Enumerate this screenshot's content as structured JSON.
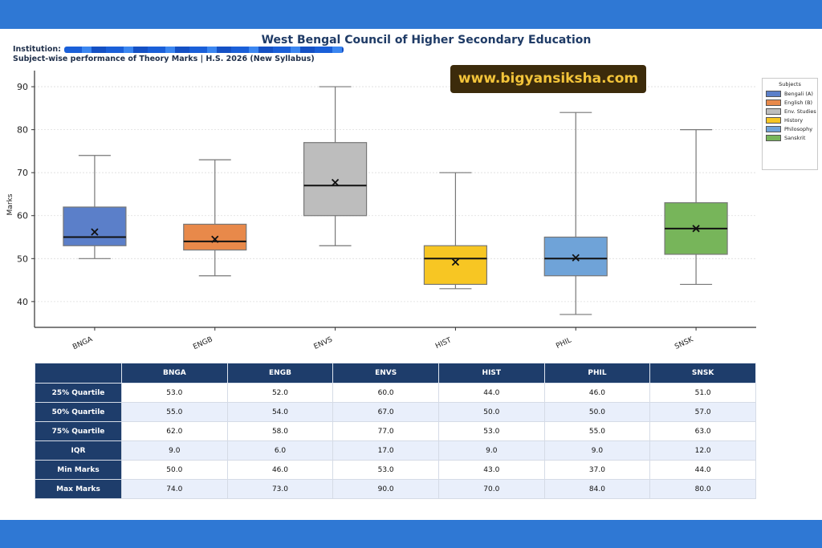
{
  "page": {
    "title": "West Bengal Council of Higher Secondary Education",
    "institution_label": "Institution:",
    "subtitle": "Subject-wise performance of Theory Marks  |  H.S. 2026 (New Syllabus)",
    "watermark": "www.bigyansiksha.com"
  },
  "legend": {
    "title": "Subjects",
    "items": [
      {
        "label": "Bengali (A)",
        "color": "#5b7fc9"
      },
      {
        "label": "English (B)",
        "color": "#e8894a"
      },
      {
        "label": "Env. Studies",
        "color": "#bdbdbd"
      },
      {
        "label": "History",
        "color": "#f7c623"
      },
      {
        "label": "Philosophy",
        "color": "#6fa3d8"
      },
      {
        "label": "Sanskrit",
        "color": "#77b55a"
      }
    ]
  },
  "chart_data": {
    "type": "box",
    "ylabel": "Marks",
    "xlabel": "",
    "ylim": [
      34,
      93
    ],
    "yticks": [
      40,
      50,
      60,
      70,
      80,
      90
    ],
    "grid": "horizontal dotted",
    "legend_position": "top-right",
    "categories": [
      "BNGA",
      "ENGB",
      "ENVS",
      "HIST",
      "PHIL",
      "SNSK"
    ],
    "colors": [
      "#5b7fc9",
      "#e8894a",
      "#bdbdbd",
      "#f7c623",
      "#6fa3d8",
      "#77b55a"
    ],
    "q1": [
      53.0,
      52.0,
      60.0,
      44.0,
      46.0,
      51.0
    ],
    "median": [
      55.0,
      54.0,
      67.0,
      50.0,
      50.0,
      57.0
    ],
    "q3": [
      62.0,
      58.0,
      77.0,
      53.0,
      55.0,
      63.0
    ],
    "min": [
      50.0,
      46.0,
      53.0,
      43.0,
      37.0,
      44.0
    ],
    "max": [
      74.0,
      73.0,
      90.0,
      70.0,
      84.0,
      80.0
    ],
    "mean": [
      56.2,
      54.5,
      67.7,
      49.2,
      50.2,
      57.0
    ]
  },
  "table": {
    "columns": [
      "",
      "BNGA",
      "ENGB",
      "ENVS",
      "HIST",
      "PHIL",
      "SNSK"
    ],
    "rows": [
      {
        "label": "25% Quartile",
        "values": [
          "53.0",
          "52.0",
          "60.0",
          "44.0",
          "46.0",
          "51.0"
        ]
      },
      {
        "label": "50% Quartile",
        "values": [
          "55.0",
          "54.0",
          "67.0",
          "50.0",
          "50.0",
          "57.0"
        ]
      },
      {
        "label": "75% Quartile",
        "values": [
          "62.0",
          "58.0",
          "77.0",
          "53.0",
          "55.0",
          "63.0"
        ]
      },
      {
        "label": "IQR",
        "values": [
          "9.0",
          "6.0",
          "17.0",
          "9.0",
          "9.0",
          "12.0"
        ]
      },
      {
        "label": "Min Marks",
        "values": [
          "50.0",
          "46.0",
          "53.0",
          "43.0",
          "37.0",
          "44.0"
        ]
      },
      {
        "label": "Max Marks",
        "values": [
          "74.0",
          "73.0",
          "90.0",
          "70.0",
          "84.0",
          "80.0"
        ]
      }
    ]
  }
}
